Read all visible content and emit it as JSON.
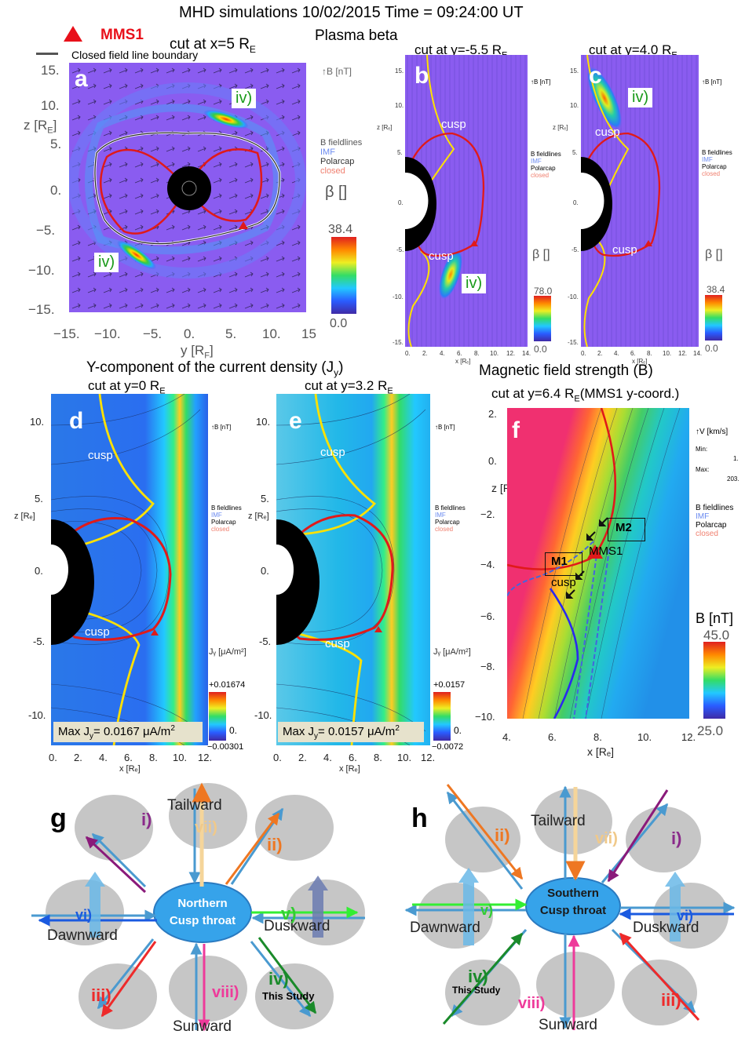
{
  "title_main": "MHD simulations 10/02/2015 Time = 09:24:00 UT",
  "title_beta": "Plasma beta",
  "mms_legend": "MMS1",
  "closed_boundary_legend": "Closed field line boundary",
  "panel_a": {
    "letter": "a",
    "cut": "cut at  x=5 R",
    "cut_sub": "E",
    "z_label": "z [R",
    "z_label_sub": "E",
    "y_label": "y [R",
    "y_label_sub": "F",
    "y_ticks": [
      "15.",
      "10.",
      "5.",
      "0.",
      "−5.",
      "−10.",
      "−15."
    ],
    "x_ticks": [
      "−15.",
      "−10.",
      "−5.",
      "0.",
      "5.",
      "10.",
      "15"
    ],
    "b_unit": "B [nT]",
    "fieldline_legend": [
      "B fieldlines",
      "IMF",
      "Polarcap",
      "closed"
    ],
    "beta_label": "β []",
    "cbar_max": "38.4",
    "cbar_min": "0.0",
    "label_top": "iv)",
    "label_bottom": "iv)"
  },
  "panel_b": {
    "letter": "b",
    "cut": "cut at  y=-5.5 R",
    "cut_sub": "E",
    "y_ticks": [
      "15.",
      "10.",
      "5.",
      "z [Rₑ]",
      "0.",
      "-5.",
      "-10.",
      "-15."
    ],
    "x_ticks": [
      "0.",
      "2.",
      "4.",
      "6.",
      "8.",
      "10.",
      "12.",
      "14."
    ],
    "x_label": "x [Rₑ]",
    "b_unit": "B [nT]",
    "fieldline_legend": [
      "B fieldlines",
      "IMF",
      "Polarcap",
      "closed"
    ],
    "beta_label": "β []",
    "cbar_max": "78.0",
    "cbar_min": "0.0",
    "cusp_top": "cusp",
    "cusp_bottom": "cusp",
    "label": "iv)"
  },
  "panel_c": {
    "letter": "c",
    "cut": "cut at  y=4.0 R",
    "cut_sub": "E",
    "y_ticks": [
      "15.",
      "10.",
      "5.",
      "z [Rₑ]",
      "0.",
      "-5.",
      "-10.",
      "-15."
    ],
    "x_ticks": [
      "0.",
      "2.",
      "4.",
      "6.",
      "8.",
      "10.",
      "12.",
      "14."
    ],
    "x_label": "x [Rₑ]",
    "b_unit": "B [nT]",
    "fieldline_legend": [
      "B fieldlines",
      "IMF",
      "Polarcap",
      "closed"
    ],
    "beta_label": "β []",
    "cbar_max": "38.4",
    "cbar_min": "0.0",
    "cusp_top": "cusp",
    "cusp_bottom": "cusp",
    "label": "iv)"
  },
  "title_jy": "Y-component of the current density (J",
  "title_jy_sub": "y",
  "title_jy_end": ")",
  "panel_d": {
    "letter": "d",
    "cut": "cut at  y=0 R",
    "cut_sub": "E",
    "y_ticks": [
      "10.",
      "5.",
      "z [Rₑ]",
      "0.",
      "-5.",
      "-10."
    ],
    "x_ticks": [
      "0.",
      "2.",
      "4.",
      "6.",
      "8.",
      "10.",
      "12."
    ],
    "x_label": "x [Rₑ]",
    "b_unit": "B [nT]",
    "fieldline_legend": [
      "B fieldlines",
      "IMF",
      "Polarcap",
      "closed"
    ],
    "jy_label": "Jᵧ [μA/m²]",
    "cbar_max": "+0.01674",
    "cbar_mid": "0.",
    "cbar_min": "−0.00301",
    "max_text": "Max J",
    "max_sub": "y",
    "max_value": "= 0.0167 μA/m",
    "max_sup": "2",
    "cusp_top": "cusp",
    "cusp_bottom": "cusp"
  },
  "panel_e": {
    "letter": "e",
    "cut": "cut at  y=3.2 R",
    "cut_sub": "E",
    "y_ticks": [
      "10.",
      "5.",
      "z [Rₑ]",
      "0.",
      "-5.",
      "-10."
    ],
    "x_ticks": [
      "0.",
      "2.",
      "4.",
      "6.",
      "8.",
      "10.",
      "12."
    ],
    "x_label": "x [Rₑ]",
    "b_unit": "B [nT]",
    "fieldline_legend": [
      "B fieldlines",
      "IMF",
      "Polarcap",
      "closed"
    ],
    "jy_label": "Jᵧ [μA/m²]",
    "cbar_max": "+0.0157",
    "cbar_mid": "0.",
    "cbar_min": "−0.0072",
    "max_text": "Max J",
    "max_sub": "y",
    "max_value": "= 0.0157 μA/m",
    "max_sup": "2",
    "cusp_top": "cusp",
    "cusp_bottom": "cusp"
  },
  "title_b": "Magnetic field strength (B)",
  "panel_f": {
    "letter": "f",
    "cut": "cut at y=6.4 R",
    "cut_sub": "E",
    "cut_end": "(MMS1 y-coord.)",
    "y_ticks": [
      "2.",
      "0.",
      "z [Rₑ]",
      "−2.",
      "−4.",
      "−6.",
      "−8.",
      "−10."
    ],
    "x_ticks": [
      "4.",
      "6.",
      "8.",
      "10.",
      "12."
    ],
    "x_label": "x [Rₑ]",
    "v_unit": "V [km/s]",
    "min_label": "Min:",
    "min_value": "1.",
    "max_label": "Max:",
    "max_value": "203.",
    "fieldline_legend": [
      "B fieldlines",
      "IMF",
      "Polarcap",
      "closed"
    ],
    "b_label": "B [nT]",
    "cbar_max": "45.0",
    "cbar_min": "25.0",
    "m1": "M1",
    "m2": "M2",
    "mms1": "MMS1",
    "cusp": "cusp"
  },
  "panel_g": {
    "letter": "g",
    "center": [
      "Northern",
      "Cusp throat"
    ],
    "tailward": "Tailward",
    "dawnward": "Dawnward",
    "duskward": "Duskward",
    "sunward": "Sunward",
    "labels": [
      "i)",
      "ii)",
      "iii)",
      "iv)",
      "v)",
      "vi)",
      "vii)",
      "viii)"
    ],
    "this_study": "This Study"
  },
  "panel_h": {
    "letter": "h",
    "center": [
      "Southern",
      "Cusp throat"
    ],
    "tailward": "Tailward",
    "dawnward": "Dawnward",
    "duskward": "Duskward",
    "sunward": "Sunward",
    "labels": [
      "i)",
      "ii)",
      "iii)",
      "iv)",
      "v)",
      "vi)",
      "vii)",
      "viii)"
    ],
    "this_study": "This Study"
  },
  "colors": {
    "beta_bg": "#8a5cf0",
    "closed_red": "#e01a1a",
    "cusp_yellow": "#ffe100",
    "jy_bg": "#2aa0f0",
    "b_red": "#f0306a",
    "ellipse_grey": "#c6c6c6",
    "center_blue": "#36a3ea",
    "arrow_blue": "#4aa0d0"
  }
}
